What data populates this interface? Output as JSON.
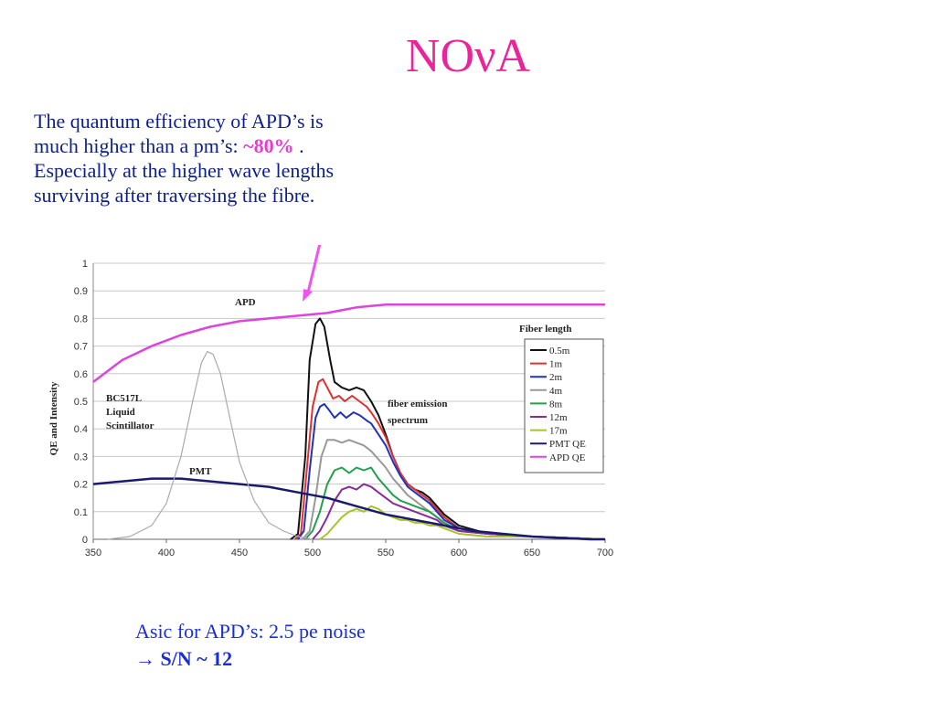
{
  "slide": {
    "title": "NOνA",
    "intro": {
      "line1": "The quantum efficiency of APD’s is",
      "line2_prefix": "much higher than a pm’s: ",
      "line2_highlight": "~80%",
      "line2_suffix": "  .",
      "line3": "Especially at the higher wave lengths",
      "line4": "surviving after traversing the fibre."
    },
    "footer": {
      "line1": "Asic for APD’s: 2.5 pe noise",
      "arrow": "→",
      "line2": "S/N ~ 12"
    },
    "colors": {
      "title": "#e8259b",
      "intro_text": "#0d1f8c",
      "highlight": "#e83bd0",
      "footer_text": "#1a2fd1",
      "pointer_arrow": "#ee55ee"
    }
  },
  "chart_data": {
    "type": "line",
    "title": "",
    "xlabel": "",
    "ylabel": "QE and Intensity",
    "xlim": [
      350,
      700
    ],
    "ylim": [
      0,
      1
    ],
    "x_ticks": [
      "350",
      "400",
      "450",
      "500",
      "550",
      "600",
      "650",
      "700"
    ],
    "y_ticks": [
      "1",
      "0.9",
      "0.8",
      "0.7",
      "0.6",
      "0.5",
      "0.4",
      "0.3",
      "0.2",
      "0.1",
      "0"
    ],
    "grid": "horizontal",
    "legend_position": "right",
    "legend_title": "Fiber length",
    "annotations": {
      "apd": "APD",
      "pmt": "PMT",
      "scint_1": "BC517L",
      "scint_2": "Liquid",
      "scint_3": "Scintillator",
      "fiber_1": "fiber emission",
      "fiber_2": "spectrum"
    },
    "series": [
      {
        "name": "0.5m",
        "color": "#111111",
        "points": [
          [
            485,
            0
          ],
          [
            490,
            0.02
          ],
          [
            495,
            0.3
          ],
          [
            498,
            0.65
          ],
          [
            502,
            0.78
          ],
          [
            505,
            0.8
          ],
          [
            508,
            0.77
          ],
          [
            512,
            0.65
          ],
          [
            515,
            0.57
          ],
          [
            520,
            0.55
          ],
          [
            525,
            0.54
          ],
          [
            530,
            0.55
          ],
          [
            535,
            0.54
          ],
          [
            540,
            0.5
          ],
          [
            545,
            0.45
          ],
          [
            550,
            0.38
          ],
          [
            555,
            0.3
          ],
          [
            560,
            0.24
          ],
          [
            565,
            0.2
          ],
          [
            570,
            0.18
          ],
          [
            575,
            0.17
          ],
          [
            580,
            0.15
          ],
          [
            585,
            0.12
          ],
          [
            590,
            0.09
          ],
          [
            600,
            0.05
          ],
          [
            620,
            0.02
          ],
          [
            650,
            0.01
          ],
          [
            700,
            0
          ]
        ]
      },
      {
        "name": "1m",
        "color": "#e03030",
        "points": [
          [
            488,
            0
          ],
          [
            492,
            0.02
          ],
          [
            496,
            0.25
          ],
          [
            500,
            0.48
          ],
          [
            504,
            0.57
          ],
          [
            507,
            0.58
          ],
          [
            510,
            0.55
          ],
          [
            514,
            0.51
          ],
          [
            518,
            0.52
          ],
          [
            522,
            0.5
          ],
          [
            527,
            0.52
          ],
          [
            532,
            0.5
          ],
          [
            537,
            0.48
          ],
          [
            540,
            0.46
          ],
          [
            545,
            0.42
          ],
          [
            550,
            0.37
          ],
          [
            555,
            0.3
          ],
          [
            560,
            0.24
          ],
          [
            565,
            0.2
          ],
          [
            570,
            0.18
          ],
          [
            575,
            0.16
          ],
          [
            580,
            0.14
          ],
          [
            585,
            0.11
          ],
          [
            590,
            0.08
          ],
          [
            600,
            0.04
          ],
          [
            620,
            0.02
          ],
          [
            650,
            0.01
          ],
          [
            700,
            0
          ]
        ]
      },
      {
        "name": "2m",
        "color": "#2233bb",
        "points": [
          [
            490,
            0
          ],
          [
            494,
            0.03
          ],
          [
            498,
            0.25
          ],
          [
            502,
            0.44
          ],
          [
            505,
            0.48
          ],
          [
            508,
            0.49
          ],
          [
            511,
            0.47
          ],
          [
            515,
            0.44
          ],
          [
            519,
            0.46
          ],
          [
            523,
            0.44
          ],
          [
            528,
            0.46
          ],
          [
            532,
            0.45
          ],
          [
            537,
            0.43
          ],
          [
            540,
            0.42
          ],
          [
            545,
            0.38
          ],
          [
            550,
            0.34
          ],
          [
            555,
            0.28
          ],
          [
            560,
            0.23
          ],
          [
            565,
            0.19
          ],
          [
            570,
            0.17
          ],
          [
            575,
            0.15
          ],
          [
            580,
            0.13
          ],
          [
            585,
            0.1
          ],
          [
            590,
            0.07
          ],
          [
            600,
            0.04
          ],
          [
            620,
            0.02
          ],
          [
            650,
            0.01
          ],
          [
            700,
            0
          ]
        ]
      },
      {
        "name": "4m",
        "color": "#999999",
        "points": [
          [
            493,
            0
          ],
          [
            498,
            0.03
          ],
          [
            502,
            0.15
          ],
          [
            506,
            0.3
          ],
          [
            510,
            0.36
          ],
          [
            515,
            0.36
          ],
          [
            520,
            0.35
          ],
          [
            525,
            0.36
          ],
          [
            530,
            0.35
          ],
          [
            535,
            0.34
          ],
          [
            540,
            0.32
          ],
          [
            545,
            0.29
          ],
          [
            550,
            0.26
          ],
          [
            555,
            0.22
          ],
          [
            560,
            0.19
          ],
          [
            565,
            0.16
          ],
          [
            570,
            0.14
          ],
          [
            575,
            0.12
          ],
          [
            580,
            0.1
          ],
          [
            585,
            0.08
          ],
          [
            590,
            0.06
          ],
          [
            600,
            0.03
          ],
          [
            620,
            0.02
          ],
          [
            650,
            0.01
          ],
          [
            700,
            0
          ]
        ]
      },
      {
        "name": "8m",
        "color": "#22a04a",
        "points": [
          [
            495,
            0
          ],
          [
            500,
            0.03
          ],
          [
            505,
            0.1
          ],
          [
            510,
            0.2
          ],
          [
            515,
            0.25
          ],
          [
            520,
            0.26
          ],
          [
            525,
            0.24
          ],
          [
            530,
            0.26
          ],
          [
            535,
            0.25
          ],
          [
            540,
            0.26
          ],
          [
            545,
            0.22
          ],
          [
            550,
            0.19
          ],
          [
            555,
            0.16
          ],
          [
            560,
            0.14
          ],
          [
            565,
            0.13
          ],
          [
            570,
            0.12
          ],
          [
            575,
            0.11
          ],
          [
            580,
            0.1
          ],
          [
            585,
            0.08
          ],
          [
            590,
            0.06
          ],
          [
            600,
            0.03
          ],
          [
            620,
            0.02
          ],
          [
            650,
            0.01
          ],
          [
            700,
            0
          ]
        ]
      },
      {
        "name": "12m",
        "color": "#8a2a9a",
        "points": [
          [
            500,
            0
          ],
          [
            505,
            0.03
          ],
          [
            510,
            0.08
          ],
          [
            515,
            0.14
          ],
          [
            520,
            0.18
          ],
          [
            525,
            0.19
          ],
          [
            530,
            0.18
          ],
          [
            535,
            0.2
          ],
          [
            540,
            0.19
          ],
          [
            545,
            0.17
          ],
          [
            550,
            0.15
          ],
          [
            555,
            0.13
          ],
          [
            560,
            0.12
          ],
          [
            565,
            0.11
          ],
          [
            570,
            0.1
          ],
          [
            575,
            0.09
          ],
          [
            580,
            0.08
          ],
          [
            585,
            0.07
          ],
          [
            590,
            0.05
          ],
          [
            600,
            0.03
          ],
          [
            620,
            0.02
          ],
          [
            650,
            0.01
          ],
          [
            700,
            0
          ]
        ]
      },
      {
        "name": "17m",
        "color": "#a8c22a",
        "points": [
          [
            505,
            0
          ],
          [
            510,
            0.02
          ],
          [
            515,
            0.05
          ],
          [
            520,
            0.08
          ],
          [
            525,
            0.1
          ],
          [
            530,
            0.11
          ],
          [
            535,
            0.1
          ],
          [
            540,
            0.12
          ],
          [
            545,
            0.11
          ],
          [
            550,
            0.09
          ],
          [
            555,
            0.08
          ],
          [
            560,
            0.07
          ],
          [
            565,
            0.07
          ],
          [
            570,
            0.06
          ],
          [
            575,
            0.06
          ],
          [
            580,
            0.05
          ],
          [
            585,
            0.05
          ],
          [
            590,
            0.04
          ],
          [
            600,
            0.02
          ],
          [
            620,
            0.01
          ],
          [
            650,
            0.01
          ],
          [
            700,
            0
          ]
        ]
      },
      {
        "name": "PMT QE",
        "color": "#1a1a6e",
        "points": [
          [
            350,
            0.2
          ],
          [
            370,
            0.21
          ],
          [
            390,
            0.22
          ],
          [
            410,
            0.22
          ],
          [
            430,
            0.21
          ],
          [
            450,
            0.2
          ],
          [
            470,
            0.19
          ],
          [
            490,
            0.17
          ],
          [
            510,
            0.15
          ],
          [
            530,
            0.12
          ],
          [
            550,
            0.09
          ],
          [
            570,
            0.07
          ],
          [
            590,
            0.05
          ],
          [
            610,
            0.03
          ],
          [
            630,
            0.02
          ],
          [
            650,
            0.01
          ],
          [
            670,
            0.005
          ],
          [
            690,
            0
          ],
          [
            700,
            0
          ]
        ]
      },
      {
        "name": "APD QE",
        "color": "#dd44dd",
        "points": [
          [
            350,
            0.57
          ],
          [
            370,
            0.65
          ],
          [
            390,
            0.7
          ],
          [
            410,
            0.74
          ],
          [
            430,
            0.77
          ],
          [
            450,
            0.79
          ],
          [
            470,
            0.8
          ],
          [
            490,
            0.81
          ],
          [
            510,
            0.82
          ],
          [
            530,
            0.84
          ],
          [
            550,
            0.85
          ],
          [
            560,
            0.85
          ],
          [
            580,
            0.85
          ],
          [
            600,
            0.85
          ],
          [
            650,
            0.85
          ],
          [
            700,
            0.85
          ]
        ]
      },
      {
        "name": "",
        "color": "#aaaaaa",
        "points": [
          [
            360,
            0
          ],
          [
            375,
            0.01
          ],
          [
            390,
            0.05
          ],
          [
            400,
            0.13
          ],
          [
            410,
            0.3
          ],
          [
            418,
            0.5
          ],
          [
            424,
            0.64
          ],
          [
            428,
            0.68
          ],
          [
            432,
            0.67
          ],
          [
            437,
            0.6
          ],
          [
            443,
            0.45
          ],
          [
            450,
            0.28
          ],
          [
            460,
            0.14
          ],
          [
            470,
            0.06
          ],
          [
            480,
            0.03
          ],
          [
            490,
            0.01
          ],
          [
            500,
            0
          ]
        ]
      }
    ]
  }
}
